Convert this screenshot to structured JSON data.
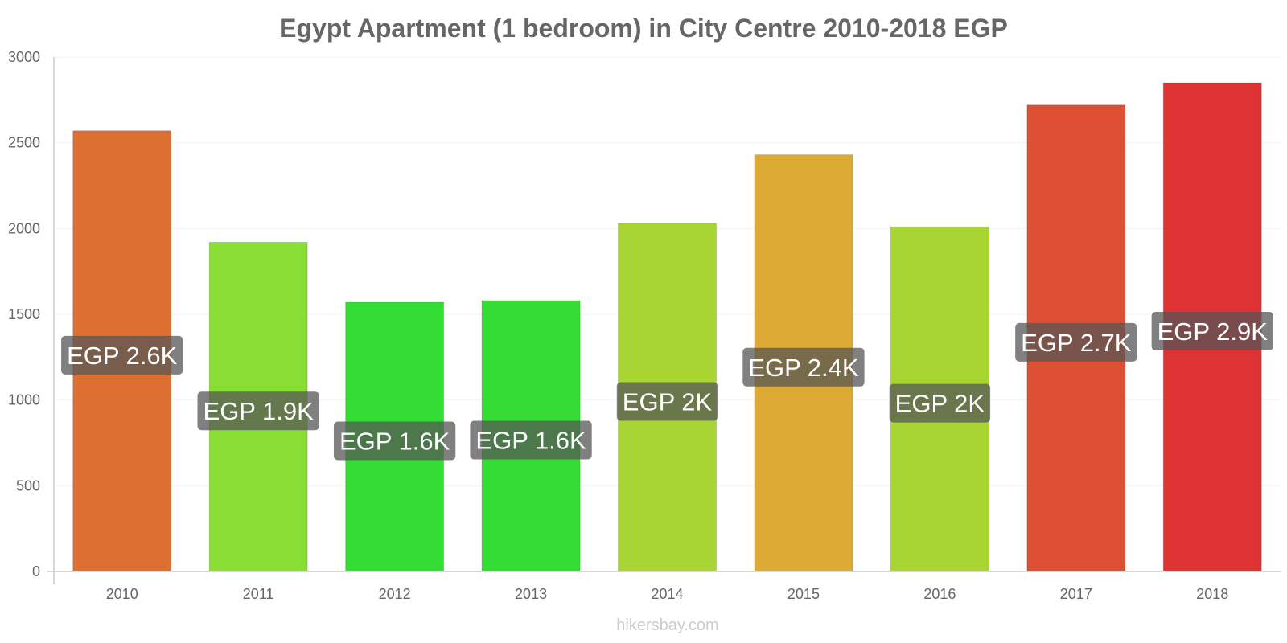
{
  "watermark": "hikersbay.com",
  "chart_data": {
    "type": "bar",
    "title": "Egypt Apartment (1 bedroom) in City Centre 2010-2018 EGP",
    "xlabel": "",
    "ylabel": "",
    "ylim": [
      0,
      3000
    ],
    "yticks": [
      0,
      500,
      1000,
      1500,
      2000,
      2500,
      3000
    ],
    "grid": true,
    "legend": "none",
    "categories": [
      "2010",
      "2011",
      "2012",
      "2013",
      "2014",
      "2015",
      "2016",
      "2017",
      "2018"
    ],
    "values": [
      2570,
      1920,
      1570,
      1580,
      2030,
      2430,
      2010,
      2720,
      2850
    ],
    "data_labels": [
      "EGP 2.6K",
      "EGP 1.9K",
      "EGP 1.6K",
      "EGP 1.6K",
      "EGP 2K",
      "EGP 2.4K",
      "EGP 2K",
      "EGP 2.7K",
      "EGP 2.9K"
    ],
    "colors": [
      "#dd6f33",
      "#8add33",
      "#33dd33",
      "#33dd33",
      "#a8d533",
      "#ddaa33",
      "#a8d533",
      "#dd5033",
      "#dd3333"
    ],
    "label_bg": "rgba(85,85,85,0.75)"
  }
}
